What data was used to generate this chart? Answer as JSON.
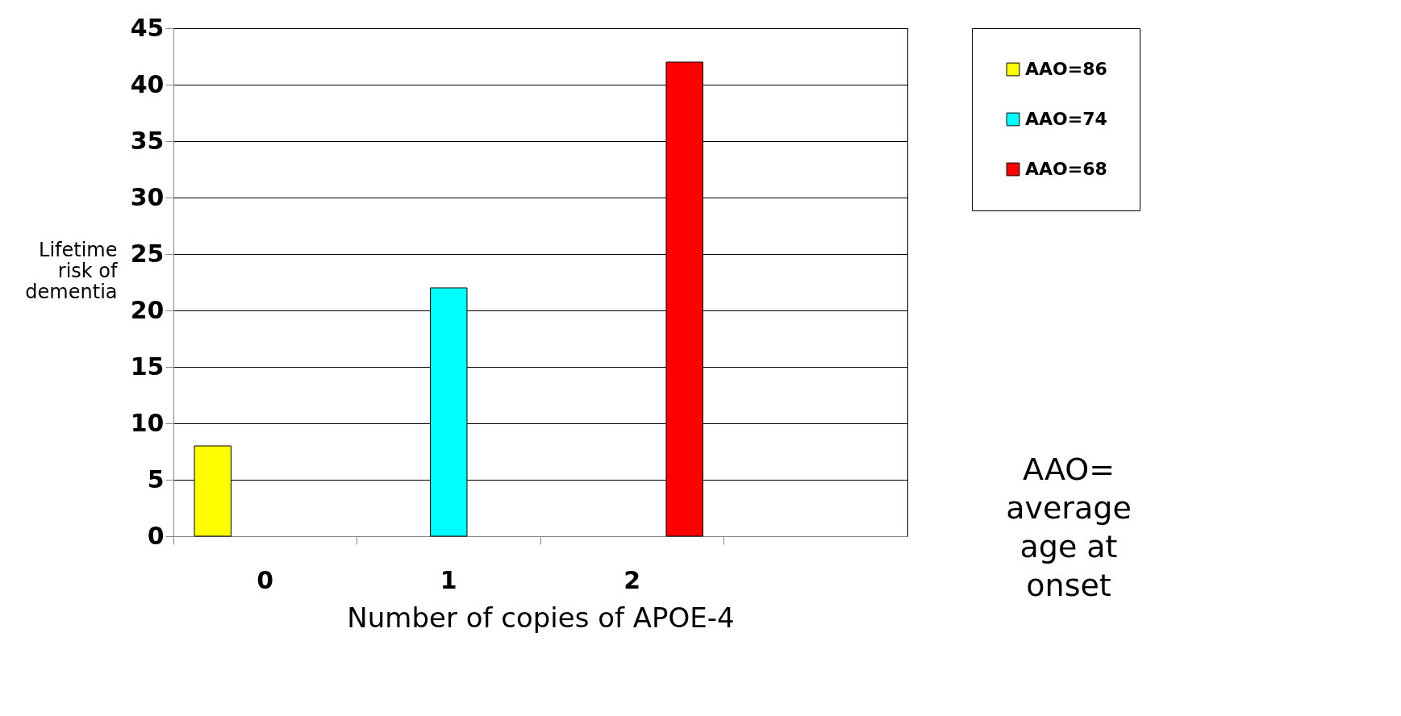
{
  "chart_data": {
    "type": "bar",
    "xlabel": "Number of copies of APOE-4",
    "ylabel": "Lifetime risk of dementia",
    "categories": [
      "0",
      "1",
      "2",
      null
    ],
    "series": [
      {
        "name": "AAO=86",
        "color": "#ffff00",
        "values": [
          8,
          null,
          null,
          null
        ]
      },
      {
        "name": "AAO=74",
        "color": "#00ffff",
        "values": [
          null,
          22,
          null,
          null
        ]
      },
      {
        "name": "AAO=68",
        "color": "#ff0000",
        "values": [
          null,
          null,
          42,
          null
        ]
      }
    ],
    "ylim": [
      0,
      45
    ],
    "yticks": [
      0,
      5,
      10,
      15,
      20,
      25,
      30,
      35,
      40,
      45
    ],
    "grid": "y",
    "legend": "right",
    "annotations": [
      "AAO= average age at onset"
    ]
  }
}
